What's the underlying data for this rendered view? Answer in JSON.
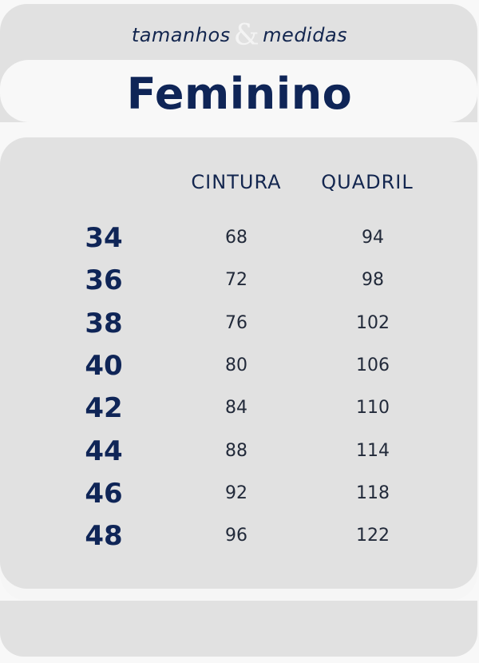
{
  "header": {
    "subtitle_left": "tamanhos",
    "subtitle_amp": "&",
    "subtitle_right": "medidas",
    "title": "Feminino"
  },
  "table": {
    "columns": [
      "",
      "CINTURA",
      "QUADRIL"
    ],
    "rows": [
      {
        "size": "34",
        "cintura": "68",
        "quadril": "94"
      },
      {
        "size": "36",
        "cintura": "72",
        "quadril": "98"
      },
      {
        "size": "38",
        "cintura": "76",
        "quadril": "102"
      },
      {
        "size": "40",
        "cintura": "80",
        "quadril": "106"
      },
      {
        "size": "42",
        "cintura": "84",
        "quadril": "110"
      },
      {
        "size": "44",
        "cintura": "88",
        "quadril": "114"
      },
      {
        "size": "46",
        "cintura": "92",
        "quadril": "118"
      },
      {
        "size": "48",
        "cintura": "96",
        "quadril": "122"
      }
    ]
  },
  "colors": {
    "navy": "#0f2557",
    "panel": "#e1e1e1",
    "background": "#f8f8f8"
  }
}
